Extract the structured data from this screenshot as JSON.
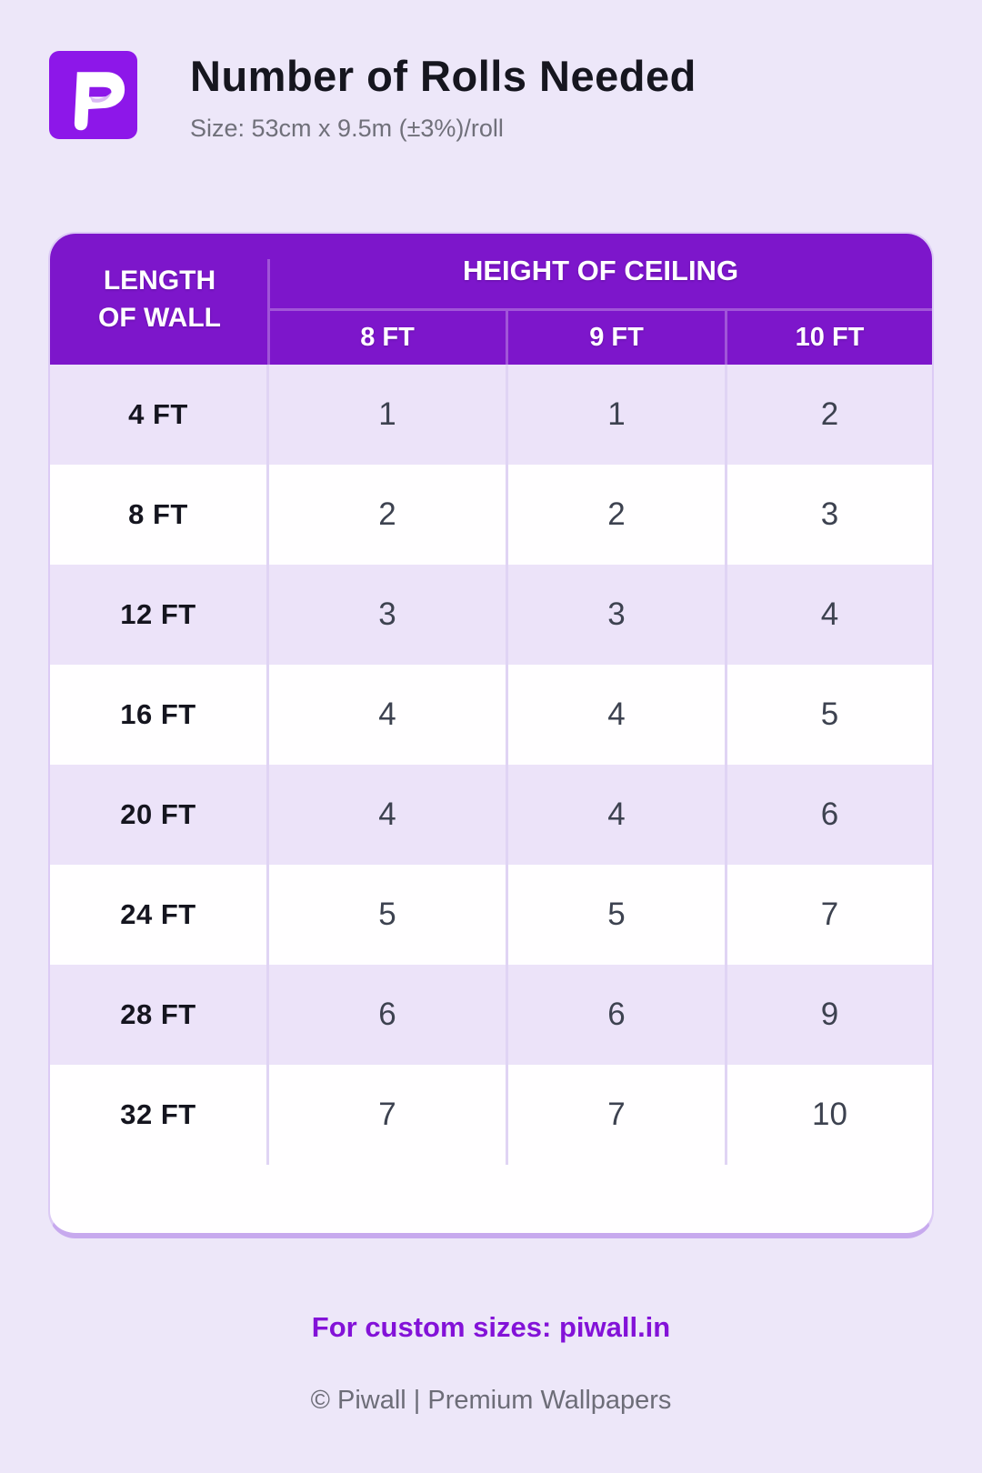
{
  "chart_data": {
    "type": "table",
    "title": "Number of Rolls Needed",
    "subtitle": "Size: 53cm x 9.5m (±3%)/roll",
    "row_header": "LENGTH OF WALL",
    "column_group_header": "HEIGHT OF CEILING",
    "columns": [
      "8 FT",
      "9 FT",
      "10 FT"
    ],
    "rows": [
      "4 FT",
      "8 FT",
      "12 FT",
      "16 FT",
      "20 FT",
      "24 FT",
      "28 FT",
      "32 FT"
    ],
    "values": [
      [
        1,
        1,
        2
      ],
      [
        2,
        2,
        3
      ],
      [
        3,
        3,
        4
      ],
      [
        4,
        4,
        5
      ],
      [
        4,
        4,
        6
      ],
      [
        5,
        5,
        7
      ],
      [
        6,
        6,
        9
      ],
      [
        7,
        7,
        10
      ]
    ]
  },
  "header": {
    "logo_letter": "P",
    "title": "Number of Rolls Needed",
    "subtitle": "Size: 53cm x 9.5m (±3%)/roll"
  },
  "table": {
    "corner_line1": "LENGTH",
    "corner_line2": "OF WALL",
    "group_header": "HEIGHT OF CEILING",
    "column_headers": [
      "8 FT",
      "9 FT",
      "10 FT"
    ],
    "rows": [
      {
        "label": "4 FT",
        "values": [
          "1",
          "1",
          "2"
        ]
      },
      {
        "label": "8 FT",
        "values": [
          "2",
          "2",
          "3"
        ]
      },
      {
        "label": "12 FT",
        "values": [
          "3",
          "3",
          "4"
        ]
      },
      {
        "label": "16 FT",
        "values": [
          "4",
          "4",
          "5"
        ]
      },
      {
        "label": "20 FT",
        "values": [
          "4",
          "4",
          "6"
        ]
      },
      {
        "label": "24 FT",
        "values": [
          "5",
          "5",
          "7"
        ]
      },
      {
        "label": "28 FT",
        "values": [
          "6",
          "6",
          "9"
        ]
      },
      {
        "label": "32 FT",
        "values": [
          "7",
          "7",
          "10"
        ]
      }
    ]
  },
  "footer": {
    "custom_sizes_text": "For custom sizes: piwall.in",
    "copyright_text": "© Piwall | Premium Wallpapers"
  },
  "colors": {
    "page_background": "#ede7f9",
    "header_purple": "#7d16cb",
    "logo_purple": "#8d17e9",
    "stripe_lavender": "#ece3f9",
    "header_separator": "#a155d8",
    "body_separator": "#e0d4f4",
    "card_border": "#dccbf5",
    "card_border_bottom": "#c7a9ee",
    "link_purple": "#8312d8",
    "title_text": "#16161f",
    "value_text": "#3d4250",
    "muted_text": "#6d6d78"
  }
}
